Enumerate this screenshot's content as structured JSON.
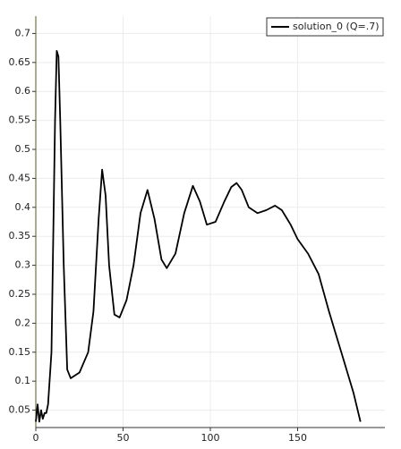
{
  "chart_data": {
    "type": "line",
    "x": [
      0,
      1,
      2,
      3,
      4,
      5,
      6,
      7,
      9,
      10,
      11,
      12,
      13,
      14,
      16,
      18,
      20,
      25,
      30,
      33,
      36,
      38,
      40,
      42,
      45,
      48,
      52,
      56,
      60,
      64,
      68,
      72,
      75,
      80,
      85,
      90,
      94,
      98,
      103,
      108,
      112,
      115,
      118,
      122,
      127,
      132,
      137,
      141,
      146,
      150,
      156,
      162,
      168,
      175,
      182,
      186
    ],
    "series": [
      {
        "name": "solution_0 (Q=.7)",
        "color": "#000000",
        "values": [
          0.03,
          0.06,
          0.03,
          0.05,
          0.035,
          0.045,
          0.045,
          0.06,
          0.15,
          0.35,
          0.55,
          0.67,
          0.66,
          0.55,
          0.3,
          0.12,
          0.105,
          0.115,
          0.15,
          0.22,
          0.38,
          0.465,
          0.42,
          0.3,
          0.215,
          0.21,
          0.24,
          0.3,
          0.39,
          0.43,
          0.38,
          0.31,
          0.295,
          0.32,
          0.39,
          0.437,
          0.41,
          0.37,
          0.375,
          0.41,
          0.435,
          0.442,
          0.43,
          0.4,
          0.39,
          0.395,
          0.403,
          0.395,
          0.37,
          0.345,
          0.32,
          0.285,
          0.22,
          0.15,
          0.08,
          0.03
        ]
      }
    ],
    "xlim": [
      0,
      200
    ],
    "xticks": [
      0,
      50,
      100,
      150
    ],
    "ylim": [
      0.02,
      0.73
    ],
    "yticks": [
      0.05,
      0.1,
      0.15,
      0.2,
      0.25,
      0.3,
      0.35,
      0.4,
      0.45,
      0.5,
      0.55,
      0.6,
      0.65,
      0.7
    ],
    "grid": true,
    "legend": "upper right"
  }
}
